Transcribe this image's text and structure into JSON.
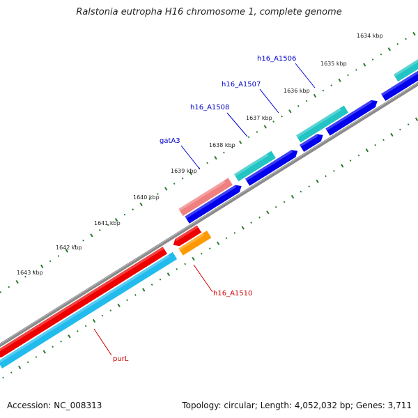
{
  "title": "Ralstonia eutropha H16 chromosome 1, complete genome",
  "footer": {
    "accession": "Accession: NC_008313",
    "summary": "Topology: circular; Length: 4,052,032 bp; Genes: 3,711"
  },
  "colors": {
    "background": "#ffffff",
    "backbone": "#888888",
    "tick": "#2a7a2a",
    "forward_label": "#0000cc",
    "reverse_label": "#cc0000"
  },
  "ticks": [
    {
      "label": "1634 kbp"
    },
    {
      "label": "1635 kbp"
    },
    {
      "label": "1636 kbp"
    },
    {
      "label": "1637 kbp"
    },
    {
      "label": "1638 kbp"
    },
    {
      "label": "1639 kbp"
    },
    {
      "label": "1640 kbp"
    },
    {
      "label": "1641 kbp"
    },
    {
      "label": "1642 kbp"
    },
    {
      "label": "1643 kbp"
    }
  ],
  "genes": [
    {
      "name": "h16_A1506",
      "strand": "+",
      "color": "#22c4c4"
    },
    {
      "name": "h16_A1507",
      "strand": "+",
      "color": "#22c4c4"
    },
    {
      "name": "h16_A1508",
      "strand": "+",
      "color": "#22c4c4"
    },
    {
      "name": "gatA3",
      "strand": "+",
      "color": "#f08080"
    },
    {
      "name": "h16_A1510",
      "strand": "-",
      "color": "#ff9900"
    },
    {
      "name": "purL",
      "strand": "-",
      "color": "#22bbee"
    }
  ],
  "cds": [
    {
      "strand": "+",
      "color": "#0000ee"
    },
    {
      "strand": "-",
      "color": "#ee0000"
    }
  ]
}
